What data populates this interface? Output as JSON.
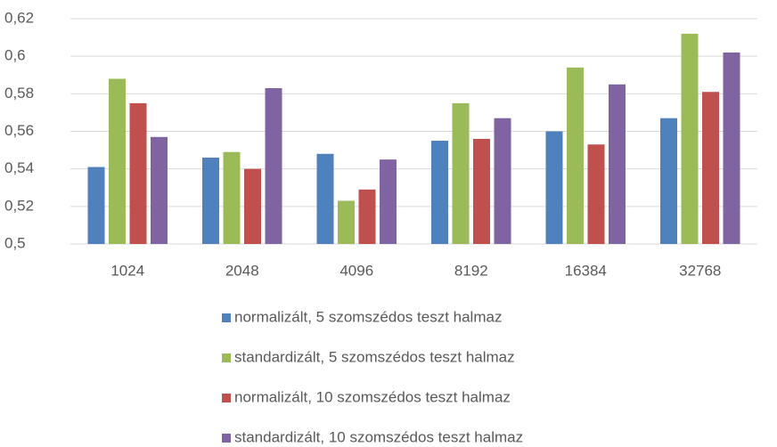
{
  "chart_data": {
    "type": "bar",
    "categories": [
      "1024",
      "2048",
      "4096",
      "8192",
      "16384",
      "32768"
    ],
    "series": [
      {
        "name": "normalizált, 5 szomszédos teszt halmaz",
        "color": "#4f81bd",
        "values": [
          0.541,
          0.546,
          0.548,
          0.555,
          0.56,
          0.567
        ]
      },
      {
        "name": "standardizált, 5 szomszédos teszt halmaz",
        "color": "#9bbb59",
        "values": [
          0.588,
          0.549,
          0.523,
          0.575,
          0.594,
          0.612
        ]
      },
      {
        "name": "normalizált, 10 szomszédos teszt halmaz",
        "color": "#c0504d",
        "values": [
          0.575,
          0.54,
          0.529,
          0.556,
          0.553,
          0.581
        ]
      },
      {
        "name": "standardizált, 10 szomszédos teszt halmaz",
        "color": "#8064a2",
        "values": [
          0.557,
          0.583,
          0.545,
          0.567,
          0.585,
          0.602
        ]
      }
    ],
    "ylim": [
      0.5,
      0.62
    ],
    "yticks": [
      {
        "value": 0.5,
        "label": "0,5"
      },
      {
        "value": 0.52,
        "label": "0,52"
      },
      {
        "value": 0.54,
        "label": "0,54"
      },
      {
        "value": 0.56,
        "label": "0,56"
      },
      {
        "value": 0.58,
        "label": "0,58"
      },
      {
        "value": 0.6,
        "label": "0,6"
      },
      {
        "value": 0.62,
        "label": "0,62"
      }
    ],
    "grid": true,
    "legend": "bottom"
  }
}
